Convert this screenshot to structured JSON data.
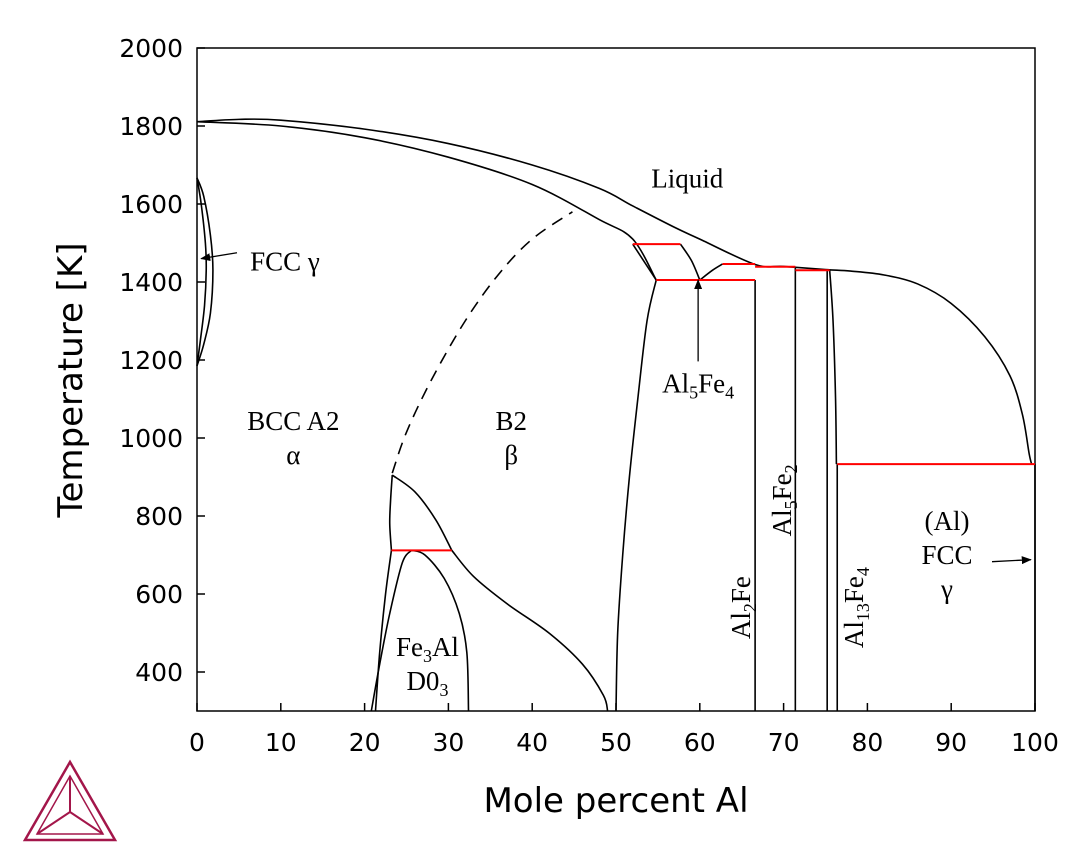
{
  "chart_data": {
    "type": "line",
    "title": "",
    "xlabel": "Mole percent Al",
    "ylabel": "Temperature [K]",
    "xlim": [
      0,
      100
    ],
    "ylim": [
      300,
      2000
    ],
    "x_ticks": [
      "0",
      "10",
      "20",
      "30",
      "40",
      "50",
      "60",
      "70",
      "80",
      "90",
      "100"
    ],
    "y_ticks": [
      "400",
      "600",
      "800",
      "1000",
      "1200",
      "1400",
      "1600",
      "1800",
      "2000"
    ],
    "grid": false,
    "legend": "none",
    "colors": {
      "boundary": "#000000",
      "invariant": "#ff0000",
      "logo": "#a3164a"
    },
    "series": [
      {
        "id": "liquidus_left",
        "style": "solid",
        "points": [
          [
            0,
            1811
          ],
          [
            5,
            1817
          ],
          [
            10,
            1815
          ],
          [
            20,
            1792
          ],
          [
            30,
            1755
          ],
          [
            40,
            1700
          ],
          [
            48,
            1640
          ],
          [
            52,
            1595
          ],
          [
            57,
            1540
          ],
          [
            60,
            1510
          ],
          [
            66.6,
            1445
          ],
          [
            70,
            1440
          ],
          [
            75,
            1432
          ],
          [
            78,
            1428
          ],
          [
            82,
            1418
          ],
          [
            86,
            1395
          ],
          [
            90,
            1345
          ],
          [
            94,
            1260
          ],
          [
            97,
            1160
          ],
          [
            98.5,
            1060
          ],
          [
            99.3,
            960
          ],
          [
            99.6,
            933
          ]
        ]
      },
      {
        "id": "solidus_bcc",
        "style": "solid",
        "points": [
          [
            0,
            1811
          ],
          [
            10,
            1800
          ],
          [
            20,
            1770
          ],
          [
            30,
            1720
          ],
          [
            40,
            1650
          ],
          [
            48,
            1560
          ],
          [
            52,
            1510
          ],
          [
            54.8,
            1405
          ]
        ]
      },
      {
        "id": "gamma_loop_outer",
        "style": "solid",
        "points": [
          [
            0,
            1667
          ],
          [
            0.8,
            1620
          ],
          [
            1.6,
            1520
          ],
          [
            1.9,
            1430
          ],
          [
            1.6,
            1320
          ],
          [
            0.8,
            1240
          ],
          [
            0,
            1185
          ]
        ]
      },
      {
        "id": "gamma_loop_inner",
        "style": "solid",
        "points": [
          [
            0,
            1667
          ],
          [
            0.5,
            1600
          ],
          [
            1.0,
            1500
          ],
          [
            1.1,
            1430
          ],
          [
            0.9,
            1340
          ],
          [
            0.4,
            1250
          ],
          [
            0,
            1185
          ]
        ]
      },
      {
        "id": "a2_b2_ordering",
        "style": "dashed",
        "points": [
          [
            23.3,
            910
          ],
          [
            25,
            1015
          ],
          [
            28,
            1150
          ],
          [
            32,
            1300
          ],
          [
            36,
            1420
          ],
          [
            40,
            1510
          ],
          [
            44.8,
            1580
          ]
        ]
      },
      {
        "id": "d03_upper_left",
        "style": "solid",
        "points": [
          [
            23.3,
            905
          ],
          [
            23.1,
            840
          ],
          [
            23.0,
            780
          ],
          [
            23.2,
            712
          ]
        ]
      },
      {
        "id": "d03_upper_right",
        "style": "solid",
        "points": [
          [
            23.3,
            905
          ],
          [
            26,
            862
          ],
          [
            28.5,
            790
          ],
          [
            30.4,
            712
          ]
        ]
      },
      {
        "id": "b2_d03_lower",
        "style": "solid",
        "points": [
          [
            30.4,
            712
          ],
          [
            33,
            645
          ],
          [
            37,
            575
          ],
          [
            42,
            500
          ],
          [
            46,
            420
          ],
          [
            48.5,
            340
          ],
          [
            49,
            300
          ]
        ]
      },
      {
        "id": "alpha_two_phase_left",
        "style": "solid",
        "points": [
          [
            23.2,
            712
          ],
          [
            22.5,
            600
          ],
          [
            21.8,
            450
          ],
          [
            21.3,
            300
          ]
        ]
      },
      {
        "id": "d03_dome_left",
        "style": "solid",
        "points": [
          [
            20.8,
            300
          ],
          [
            21.8,
            420
          ],
          [
            23,
            550
          ],
          [
            24.5,
            680
          ],
          [
            25.6,
            712
          ]
        ]
      },
      {
        "id": "d03_dome_right",
        "style": "solid",
        "points": [
          [
            25.6,
            712
          ],
          [
            27.2,
            700
          ],
          [
            29.5,
            640
          ],
          [
            31.3,
            550
          ],
          [
            32.2,
            450
          ],
          [
            32.4,
            300
          ]
        ]
      },
      {
        "id": "b2_solvus",
        "style": "solid",
        "points": [
          [
            50,
            300
          ],
          [
            50.2,
            500
          ],
          [
            50.8,
            700
          ],
          [
            51.6,
            900
          ],
          [
            52.6,
            1100
          ],
          [
            53.7,
            1300
          ],
          [
            54.8,
            1405
          ]
        ]
      },
      {
        "id": "peritectic_left",
        "style": "solid",
        "points": [
          [
            52,
            1497
          ],
          [
            54.8,
            1405
          ]
        ]
      },
      {
        "id": "al5fe4_left",
        "style": "solid",
        "points": [
          [
            57.7,
            1497
          ],
          [
            59,
            1455
          ],
          [
            60,
            1405
          ]
        ]
      },
      {
        "id": "al5fe4_right",
        "style": "solid",
        "points": [
          [
            60,
            1405
          ],
          [
            61.5,
            1430
          ],
          [
            62.7,
            1446
          ]
        ]
      },
      {
        "id": "al2fe_left",
        "style": "solid",
        "points": [
          [
            66.6,
            1405
          ],
          [
            66.6,
            300
          ]
        ]
      },
      {
        "id": "al5fe2_left",
        "style": "solid",
        "points": [
          [
            71.4,
            1439
          ],
          [
            71.4,
            300
          ]
        ]
      },
      {
        "id": "al13fe4_left",
        "style": "solid",
        "points": [
          [
            75.2,
            1430
          ],
          [
            75.2,
            300
          ]
        ]
      },
      {
        "id": "al13fe4_right_top",
        "style": "solid",
        "points": [
          [
            75.5,
            1430
          ],
          [
            75.9,
            1300
          ],
          [
            76.2,
            1100
          ],
          [
            76.3,
            933
          ]
        ]
      },
      {
        "id": "al13fe4_right",
        "style": "solid",
        "points": [
          [
            76.4,
            933
          ],
          [
            76.4,
            300
          ]
        ]
      },
      {
        "id": "al_solvus",
        "style": "solid",
        "points": [
          [
            100,
            933
          ],
          [
            100,
            300
          ]
        ]
      }
    ],
    "invariant_lines": [
      {
        "x": [
          52,
          57.7
        ],
        "y": 1497
      },
      {
        "x": [
          62.7,
          66.6
        ],
        "y": 1446
      },
      {
        "x": [
          54.8,
          66.6
        ],
        "y": 1405
      },
      {
        "x": [
          66.6,
          71.4
        ],
        "y": 1439
      },
      {
        "x": [
          71.4,
          75.5
        ],
        "y": 1430
      },
      {
        "x": [
          76.4,
          100
        ],
        "y": 933
      },
      {
        "x": [
          23.2,
          30.4
        ],
        "y": 712
      }
    ],
    "annotations": [
      {
        "id": "liquid",
        "lines": [
          [
            {
              "t": "Liquid"
            }
          ]
        ],
        "x": 58.5,
        "y": 1665
      },
      {
        "id": "fcc_gamma_left",
        "lines": [
          [
            {
              "t": "FCC γ"
            }
          ]
        ],
        "x": 10.5,
        "y": 1452,
        "arrow_to": [
          0.5,
          1460
        ]
      },
      {
        "id": "bcc_a2",
        "lines": [
          [
            {
              "t": "BCC A2"
            }
          ],
          [
            {
              "t": "α"
            }
          ]
        ],
        "x": 11.5,
        "y": 1000
      },
      {
        "id": "b2",
        "lines": [
          [
            {
              "t": "B2"
            }
          ],
          [
            {
              "t": "β"
            }
          ]
        ],
        "x": 37.5,
        "y": 1000
      },
      {
        "id": "al5fe4",
        "lines": [
          [
            {
              "t": "Al"
            },
            {
              "t": "5",
              "sub": true
            },
            {
              "t": "Fe"
            },
            {
              "t": "4",
              "sub": true
            }
          ]
        ],
        "x": 59.8,
        "y": 1140,
        "arrow_to": [
          59.8,
          1405
        ]
      },
      {
        "id": "fe3al",
        "lines": [
          [
            {
              "t": "Fe"
            },
            {
              "t": "3",
              "sub": true
            },
            {
              "t": "Al"
            }
          ],
          [
            {
              "t": "D0"
            },
            {
              "t": "3",
              "sub": true
            }
          ]
        ],
        "x": 27.5,
        "y": 420
      },
      {
        "id": "al2fe",
        "rotate": true,
        "lines": [
          [
            {
              "t": "Al"
            },
            {
              "t": "2",
              "sub": true
            },
            {
              "t": "Fe"
            }
          ]
        ],
        "x": 64.9,
        "y": 565
      },
      {
        "id": "al5fe2",
        "rotate": true,
        "lines": [
          [
            {
              "t": "Al"
            },
            {
              "t": "5",
              "sub": true
            },
            {
              "t": "Fe"
            },
            {
              "t": "2",
              "sub": true
            }
          ]
        ],
        "x": 69.8,
        "y": 840
      },
      {
        "id": "al13fe4",
        "rotate": true,
        "lines": [
          [
            {
              "t": "Al"
            },
            {
              "t": "13",
              "sub": true
            },
            {
              "t": "Fe"
            },
            {
              "t": "4",
              "sub": true
            }
          ]
        ],
        "x": 78.4,
        "y": 565
      },
      {
        "id": "al_fcc",
        "lines": [
          [
            {
              "t": "(Al)"
            }
          ],
          [
            {
              "t": "FCC"
            }
          ],
          [
            {
              "t": "γ"
            }
          ]
        ],
        "x": 89.5,
        "y": 700,
        "arrow_to": [
          99.5,
          688
        ]
      }
    ]
  }
}
